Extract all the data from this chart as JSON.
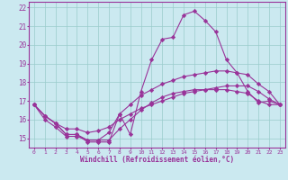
{
  "xlabel": "Windchill (Refroidissement éolien,°C)",
  "bg_color": "#cbe9f0",
  "line_color": "#993399",
  "grid_color": "#99cccc",
  "xlim": [
    -0.5,
    23.5
  ],
  "ylim": [
    14.5,
    22.3
  ],
  "xticks": [
    0,
    1,
    2,
    3,
    4,
    5,
    6,
    7,
    8,
    9,
    10,
    11,
    12,
    13,
    14,
    15,
    16,
    17,
    18,
    19,
    20,
    21,
    22,
    23
  ],
  "yticks": [
    15,
    16,
    17,
    18,
    19,
    20,
    21,
    22
  ],
  "series": [
    [
      16.8,
      16.2,
      15.8,
      15.2,
      15.2,
      14.8,
      14.8,
      14.8,
      16.3,
      15.2,
      17.5,
      19.2,
      20.3,
      20.4,
      21.6,
      21.8,
      21.3,
      20.7,
      19.2,
      18.5,
      17.5,
      16.9,
      17.0,
      16.8
    ],
    [
      16.8,
      16.2,
      15.8,
      15.2,
      15.2,
      14.9,
      14.9,
      15.3,
      16.3,
      16.8,
      17.3,
      17.6,
      17.9,
      18.1,
      18.3,
      18.4,
      18.5,
      18.6,
      18.6,
      18.5,
      18.4,
      17.9,
      17.5,
      16.8
    ],
    [
      16.8,
      16.2,
      15.8,
      15.5,
      15.5,
      15.3,
      15.4,
      15.6,
      16.0,
      16.3,
      16.6,
      16.8,
      17.0,
      17.2,
      17.4,
      17.5,
      17.6,
      17.7,
      17.8,
      17.8,
      17.8,
      17.5,
      17.1,
      16.8
    ],
    [
      16.8,
      16.0,
      15.6,
      15.1,
      15.1,
      14.9,
      14.9,
      14.9,
      15.5,
      16.0,
      16.5,
      16.9,
      17.2,
      17.4,
      17.5,
      17.6,
      17.6,
      17.6,
      17.6,
      17.5,
      17.4,
      17.0,
      16.8,
      16.8
    ]
  ]
}
